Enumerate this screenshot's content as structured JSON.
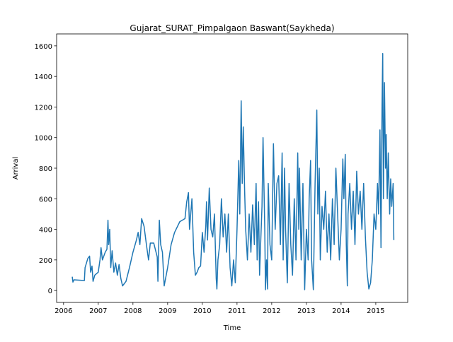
{
  "chart_data": {
    "type": "line",
    "title": "Gujarat_SURAT_Pimpalgaon Baswant(Saykheda)",
    "xlabel": "Time",
    "ylabel": "Arrival",
    "xlim": [
      2005.8,
      2015.92
    ],
    "ylim": [
      -78,
      1678
    ],
    "xticks": [
      2006,
      2007,
      2008,
      2009,
      2010,
      2011,
      2012,
      2013,
      2014,
      2015
    ],
    "yticks": [
      0,
      200,
      400,
      600,
      800,
      1000,
      1200,
      1400,
      1600
    ],
    "series": [
      {
        "color": "#1f77b4",
        "x": [
          2006.25,
          2006.27,
          2006.3,
          2006.6,
          2006.62,
          2006.7,
          2006.75,
          2006.78,
          2006.82,
          2006.85,
          2006.9,
          2007.0,
          2007.05,
          2007.08,
          2007.12,
          2007.2,
          2007.25,
          2007.28,
          2007.3,
          2007.33,
          2007.36,
          2007.4,
          2007.45,
          2007.5,
          2007.55,
          2007.6,
          2007.65,
          2007.7,
          2007.8,
          2007.9,
          2008.0,
          2008.1,
          2008.15,
          2008.2,
          2008.25,
          2008.32,
          2008.4,
          2008.45,
          2008.5,
          2008.6,
          2008.7,
          2008.72,
          2008.76,
          2008.8,
          2008.85,
          2008.9,
          2009.0,
          2009.1,
          2009.2,
          2009.35,
          2009.5,
          2009.55,
          2009.6,
          2009.63,
          2009.7,
          2009.75,
          2009.8,
          2009.85,
          2009.9,
          2009.95,
          2010.0,
          2010.05,
          2010.1,
          2010.12,
          2010.15,
          2010.2,
          2010.25,
          2010.3,
          2010.35,
          2010.4,
          2010.42,
          2010.45,
          2010.5,
          2010.55,
          2010.6,
          2010.65,
          2010.7,
          2010.75,
          2010.8,
          2010.85,
          2010.9,
          2010.95,
          2011.0,
          2011.05,
          2011.08,
          2011.12,
          2011.15,
          2011.18,
          2011.22,
          2011.25,
          2011.3,
          2011.35,
          2011.4,
          2011.45,
          2011.5,
          2011.55,
          2011.58,
          2011.62,
          2011.65,
          2011.68,
          2011.72,
          2011.75,
          2011.8,
          2011.82,
          2011.85,
          2011.88,
          2011.9,
          2011.95,
          2012.0,
          2012.05,
          2012.1,
          2012.15,
          2012.2,
          2012.25,
          2012.3,
          2012.33,
          2012.37,
          2012.4,
          2012.45,
          2012.5,
          2012.55,
          2012.6,
          2012.65,
          2012.7,
          2012.75,
          2012.78,
          2012.8,
          2012.85,
          2012.9,
          2012.95,
          2013.0,
          2013.05,
          2013.08,
          2013.12,
          2013.15,
          2013.2,
          2013.25,
          2013.3,
          2013.33,
          2013.37,
          2013.4,
          2013.45,
          2013.5,
          2013.55,
          2013.6,
          2013.65,
          2013.7,
          2013.75,
          2013.8,
          2013.85,
          2013.9,
          2013.95,
          2014.0,
          2014.05,
          2014.08,
          2014.12,
          2014.15,
          2014.18,
          2014.2,
          2014.25,
          2014.3,
          2014.35,
          2014.4,
          2014.45,
          2014.5,
          2014.55,
          2014.6,
          2014.65,
          2014.7,
          2014.75,
          2014.8,
          2014.85,
          2014.9,
          2014.95,
          2015.0,
          2015.05,
          2015.08,
          2015.12,
          2015.15,
          2015.18,
          2015.2,
          2015.22,
          2015.25,
          2015.28,
          2015.3,
          2015.33,
          2015.36,
          2015.4,
          2015.43,
          2015.46,
          2015.5,
          2015.52
        ],
        "values": [
          90,
          55,
          70,
          65,
          150,
          210,
          225,
          120,
          160,
          60,
          100,
          120,
          200,
          280,
          200,
          250,
          270,
          460,
          300,
          400,
          150,
          260,
          120,
          180,
          100,
          170,
          80,
          30,
          60,
          150,
          250,
          330,
          380,
          300,
          470,
          420,
          280,
          200,
          310,
          310,
          220,
          60,
          460,
          300,
          250,
          30,
          150,
          300,
          380,
          450,
          470,
          580,
          640,
          400,
          600,
          250,
          100,
          120,
          150,
          160,
          380,
          250,
          420,
          580,
          330,
          670,
          400,
          350,
          500,
          80,
          10,
          200,
          300,
          600,
          350,
          500,
          250,
          500,
          150,
          30,
          200,
          50,
          400,
          850,
          500,
          1240,
          700,
          1070,
          650,
          400,
          200,
          500,
          250,
          560,
          300,
          700,
          200,
          580,
          100,
          300,
          550,
          1000,
          400,
          5,
          200,
          10,
          700,
          300,
          200,
          960,
          400,
          700,
          750,
          300,
          900,
          200,
          800,
          400,
          50,
          700,
          300,
          100,
          600,
          200,
          900,
          400,
          800,
          200,
          700,
          5,
          400,
          200,
          600,
          850,
          200,
          5,
          700,
          1180,
          500,
          800,
          200,
          550,
          400,
          650,
          250,
          500,
          200,
          600,
          300,
          800,
          500,
          200,
          400,
          860,
          600,
          890,
          300,
          30,
          500,
          700,
          400,
          650,
          300,
          780,
          500,
          650,
          400,
          700,
          350,
          120,
          10,
          50,
          200,
          500,
          400,
          700,
          500,
          1050,
          280,
          1200,
          1550,
          600,
          1360,
          800,
          1020,
          600,
          900,
          500,
          730,
          550,
          700,
          330
        ]
      }
    ]
  }
}
